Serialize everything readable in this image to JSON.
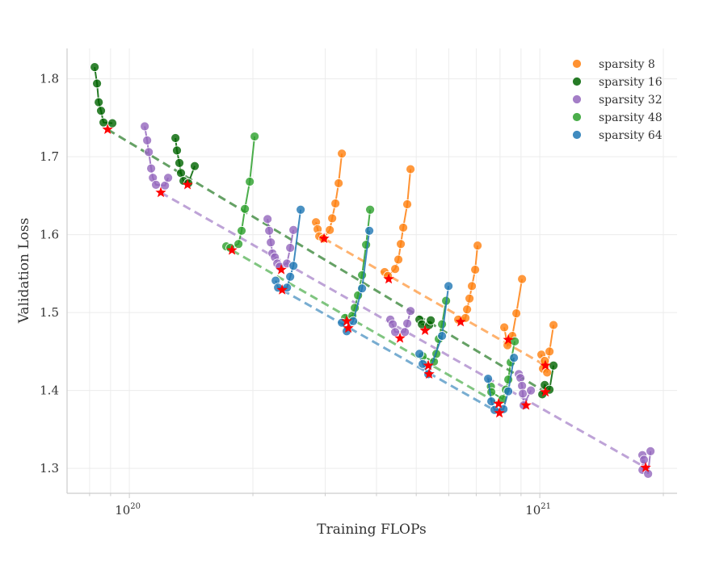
{
  "chart_data": {
    "type": "scatter",
    "title": "",
    "xlabel": "Training FLOPs",
    "ylabel": "Validation Loss",
    "xscale": "log",
    "xlim": [
      7.05e+19,
      2.16e+21
    ],
    "ylim": [
      1.268,
      1.839
    ],
    "x_tick_labels": [
      {
        "value": 1e+20,
        "base": "10",
        "exp": "20"
      },
      {
        "value": 1e+21,
        "base": "10",
        "exp": "21"
      }
    ],
    "y_ticks": [
      1.3,
      1.4,
      1.5,
      1.6,
      1.7,
      1.8
    ],
    "y_tick_labels": [
      "1.3",
      "1.4",
      "1.5",
      "1.6",
      "1.7",
      "1.8"
    ],
    "grid": true,
    "legend_position": "top-right",
    "optimum_marker_color": "#ff0000",
    "series": [
      {
        "name": "sparsity 8",
        "color": "#ff7f0e",
        "groups": [
          {
            "points": [
              [
                2.849e+20,
                1.616
              ],
              [
                2.875e+20,
                1.607
              ],
              [
                2.901e+20,
                1.598
              ],
              [
                2.968e+20,
                1.595
              ],
              [
                3.078e+20,
                1.606
              ],
              [
                3.12e+20,
                1.621
              ],
              [
                3.177e+20,
                1.64
              ],
              [
                3.235e+20,
                1.666
              ],
              [
                3.294e+20,
                1.704
              ]
            ],
            "optimum": [
              2.981e+20,
              1.595
            ]
          },
          {
            "points": [
              [
                4.188e+20,
                1.552
              ],
              [
                4.265e+20,
                1.547
              ],
              [
                4.442e+20,
                1.556
              ],
              [
                4.523e+20,
                1.568
              ],
              [
                4.585e+20,
                1.588
              ],
              [
                4.648e+20,
                1.609
              ],
              [
                4.754e+20,
                1.639
              ],
              [
                4.842e+20,
                1.684
              ]
            ],
            "optimum": [
              4.284e+20,
              1.543
            ]
          },
          {
            "points": [
              [
                6.327e+20,
                1.491
              ],
              [
                6.59e+20,
                1.493
              ],
              [
                6.65e+20,
                1.504
              ],
              [
                6.741e+20,
                1.518
              ],
              [
                6.833e+20,
                1.534
              ],
              [
                6.959e+20,
                1.555
              ],
              [
                7.054e+20,
                1.586
              ]
            ],
            "optimum": [
              6.414e+20,
              1.488
            ]
          },
          {
            "points": [
              [
                8.193e+20,
                1.481
              ],
              [
                8.343e+20,
                1.458
              ],
              [
                8.572e+20,
                1.47
              ],
              [
                8.769e+20,
                1.499
              ],
              [
                9.052e+20,
                1.543
              ]
            ],
            "optimum": [
              8.38e+20,
              1.465
            ]
          },
          {
            "points": [
              [
                1.009e+21,
                1.446
              ],
              [
                1.018e+21,
                1.428
              ],
              [
                1.028e+21,
                1.438
              ],
              [
                1.042e+21,
                1.423
              ],
              [
                1.056e+21,
                1.45
              ],
              [
                1.08e+21,
                1.484
              ]
            ],
            "optimum": [
              1.032e+21,
              1.432
            ]
          }
        ]
      },
      {
        "name": "sparsity 16",
        "color": "#006400",
        "groups": [
          {
            "points": [
              [
                8.23e+19,
                1.815
              ],
              [
                8.34e+19,
                1.794
              ],
              [
                8.42e+19,
                1.77
              ],
              [
                8.53e+19,
                1.759
              ],
              [
                8.65e+19,
                1.744
              ],
              [
                9.09e+19,
                1.743
              ]
            ],
            "optimum": [
              8.85e+19,
              1.735
            ]
          },
          {
            "points": [
              [
                1.295e+20,
                1.724
              ],
              [
                1.306e+20,
                1.708
              ],
              [
                1.324e+20,
                1.692
              ],
              [
                1.336e+20,
                1.679
              ],
              [
                1.355e+20,
                1.669
              ],
              [
                1.392e+20,
                1.666
              ],
              [
                1.443e+20,
                1.688
              ]
            ],
            "optimum": [
              1.386e+20,
              1.664
            ]
          },
          {
            "points": [
              [
                5.09e+20,
                1.491
              ],
              [
                5.16e+20,
                1.485
              ],
              [
                5.375e+20,
                1.484
              ],
              [
                5.424e+20,
                1.49
              ]
            ],
            "optimum": [
              5.254e+20,
              1.477
            ]
          },
          {
            "points": [
              [
                1.014e+21,
                1.395
              ],
              [
                1.028e+21,
                1.407
              ],
              [
                1.056e+21,
                1.401
              ],
              [
                1.08e+21,
                1.432
              ]
            ],
            "optimum": [
              1.032e+21,
              1.398
            ]
          }
        ]
      },
      {
        "name": "sparsity 32",
        "color": "#9467bd",
        "groups": [
          {
            "points": [
              [
                1.09e+20,
                1.739
              ],
              [
                1.105e+20,
                1.721
              ],
              [
                1.115e+20,
                1.706
              ],
              [
                1.13e+20,
                1.685
              ],
              [
                1.141e+20,
                1.673
              ],
              [
                1.161e+20,
                1.664
              ],
              [
                1.221e+20,
                1.663
              ],
              [
                1.243e+20,
                1.673
              ]
            ],
            "optimum": [
              1.193e+20,
              1.654
            ]
          },
          {
            "points": [
              [
                2.171e+20,
                1.62
              ],
              [
                2.191e+20,
                1.605
              ],
              [
                2.211e+20,
                1.59
              ],
              [
                2.231e+20,
                1.576
              ],
              [
                2.262e+20,
                1.571
              ],
              [
                2.293e+20,
                1.563
              ],
              [
                2.324e+20,
                1.559
              ],
              [
                2.421e+20,
                1.563
              ],
              [
                2.465e+20,
                1.583
              ],
              [
                2.51e+20,
                1.606
              ]
            ],
            "optimum": [
              2.345e+20,
              1.555
            ]
          },
          {
            "points": [
              [
                4.323e+20,
                1.491
              ],
              [
                4.382e+20,
                1.485
              ],
              [
                4.442e+20,
                1.475
              ],
              [
                4.69e+20,
                1.475
              ],
              [
                4.754e+20,
                1.486
              ],
              [
                4.842e+20,
                1.502
              ]
            ],
            "optimum": [
              4.564e+20,
              1.467
            ]
          },
          {
            "points": [
              [
                8.889e+20,
                1.421
              ],
              [
                8.97e+20,
                1.416
              ],
              [
                9.052e+20,
                1.406
              ],
              [
                9.093e+20,
                1.396
              ],
              [
                9.135e+20,
                1.381
              ],
              [
                9.513e+20,
                1.4
              ]
            ],
            "optimum": [
              9.26e+20,
              1.381
            ]
          },
          {
            "points": [
              [
                1.778e+21,
                1.317
              ],
              [
                1.794e+21,
                1.311
              ],
              [
                1.779e+21,
                1.298
              ],
              [
                1.836e+21,
                1.293
              ],
              [
                1.861e+21,
                1.322
              ]
            ],
            "optimum": [
              1.811e+21,
              1.301
            ]
          }
        ]
      },
      {
        "name": "sparsity 48",
        "color": "#2ca02c",
        "groups": [
          {
            "points": [
              [
                1.722e+20,
                1.585
              ],
              [
                1.762e+20,
                1.583
              ],
              [
                1.844e+20,
                1.588
              ],
              [
                1.877e+20,
                1.605
              ],
              [
                1.912e+20,
                1.633
              ],
              [
                1.965e+20,
                1.668
              ],
              [
                2.019e+20,
                1.726
              ]
            ],
            "optimum": [
              1.778e+20,
              1.58
            ]
          },
          {
            "points": [
              [
                3.354e+20,
                1.493
              ],
              [
                3.494e+20,
                1.496
              ],
              [
                3.542e+20,
                1.506
              ],
              [
                3.607e+20,
                1.522
              ],
              [
                3.689e+20,
                1.548
              ],
              [
                3.774e+20,
                1.587
              ],
              [
                3.86e+20,
                1.632
              ]
            ],
            "optimum": [
              3.385e+20,
              1.489
            ]
          },
          {
            "points": [
              [
                5.183e+20,
                1.444
              ],
              [
                5.522e+20,
                1.437
              ],
              [
                5.598e+20,
                1.447
              ],
              [
                5.674e+20,
                1.466
              ],
              [
                5.778e+20,
                1.485
              ],
              [
                5.911e+20,
                1.515
              ]
            ],
            "optimum": [
              5.35e+20,
              1.432
            ]
          },
          {
            "points": [
              [
                7.6e+20,
                1.405
              ],
              [
                7.619e+20,
                1.398
              ],
              [
                8.118e+20,
                1.389
              ],
              [
                8.267e+20,
                1.401
              ],
              [
                8.38e+20,
                1.414
              ],
              [
                8.495e+20,
                1.436
              ],
              [
                8.69e+20,
                1.463
              ]
            ],
            "optimum": [
              7.937e+20,
              1.383
            ]
          }
        ]
      },
      {
        "name": "sparsity 64",
        "color": "#1f77b4",
        "groups": [
          {
            "points": [
              [
                2.272e+20,
                1.541
              ],
              [
                2.303e+20,
                1.532
              ],
              [
                2.421e+20,
                1.532
              ],
              [
                2.465e+20,
                1.546
              ],
              [
                2.51e+20,
                1.56
              ],
              [
                2.614e+20,
                1.632
              ]
            ],
            "optimum": [
              2.356e+20,
              1.529
            ]
          },
          {
            "points": [
              [
                3.294e+20,
                1.487
              ],
              [
                3.385e+20,
                1.476
              ],
              [
                3.51e+20,
                1.489
              ],
              [
                3.689e+20,
                1.531
              ],
              [
                3.843e+20,
                1.605
              ]
            ],
            "optimum": [
              3.416e+20,
              1.48
            ]
          },
          {
            "points": [
              [
                5.09e+20,
                1.447
              ],
              [
                5.183e+20,
                1.434
              ],
              [
                5.35e+20,
                1.421
              ],
              [
                5.778e+20,
                1.47
              ],
              [
                5.992e+20,
                1.534
              ]
            ],
            "optimum": [
              5.375e+20,
              1.421
            ]
          },
          {
            "points": [
              [
                7.482e+20,
                1.415
              ],
              [
                7.619e+20,
                1.386
              ],
              [
                7.759e+20,
                1.375
              ],
              [
                8.155e+20,
                1.376
              ],
              [
                8.38e+20,
                1.399
              ],
              [
                8.65e+20,
                1.442
              ]
            ],
            "optimum": [
              7.973e+20,
              1.371
            ]
          }
        ]
      }
    ]
  }
}
